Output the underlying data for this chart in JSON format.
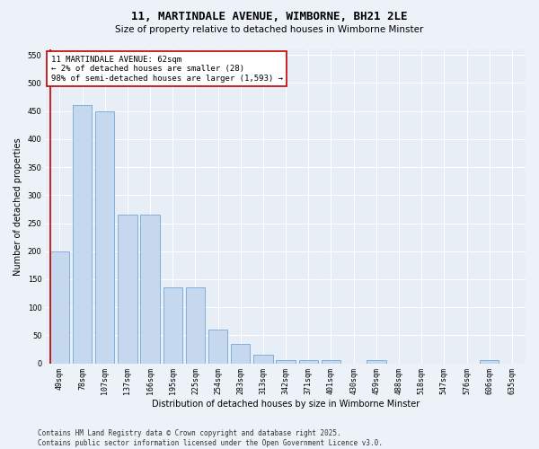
{
  "title": "11, MARTINDALE AVENUE, WIMBORNE, BH21 2LE",
  "subtitle": "Size of property relative to detached houses in Wimborne Minster",
  "xlabel": "Distribution of detached houses by size in Wimborne Minster",
  "ylabel": "Number of detached properties",
  "categories": [
    "49sqm",
    "78sqm",
    "107sqm",
    "137sqm",
    "166sqm",
    "195sqm",
    "225sqm",
    "254sqm",
    "283sqm",
    "313sqm",
    "342sqm",
    "371sqm",
    "401sqm",
    "430sqm",
    "459sqm",
    "488sqm",
    "518sqm",
    "547sqm",
    "576sqm",
    "606sqm",
    "635sqm"
  ],
  "values": [
    200,
    460,
    450,
    265,
    265,
    135,
    135,
    60,
    35,
    15,
    5,
    5,
    5,
    0,
    5,
    0,
    0,
    0,
    0,
    5,
    0
  ],
  "bar_color": "#c5d8ed",
  "bar_edge_color": "#5b9bd5",
  "highlight_color": "#c00000",
  "annotation_text": "11 MARTINDALE AVENUE: 62sqm\n← 2% of detached houses are smaller (28)\n98% of semi-detached houses are larger (1,593) →",
  "annotation_box_color": "#ffffff",
  "annotation_box_edge_color": "#c00000",
  "ylim": [
    0,
    560
  ],
  "yticks": [
    0,
    50,
    100,
    150,
    200,
    250,
    300,
    350,
    400,
    450,
    500,
    550
  ],
  "footer": "Contains HM Land Registry data © Crown copyright and database right 2025.\nContains public sector information licensed under the Open Government Licence v3.0.",
  "bg_color": "#edf2f9",
  "plot_bg_color": "#e8eef6",
  "grid_color": "#ffffff",
  "title_fontsize": 9,
  "subtitle_fontsize": 7.5,
  "axis_label_fontsize": 7,
  "tick_fontsize": 6,
  "annotation_fontsize": 6.5,
  "footer_fontsize": 5.5
}
